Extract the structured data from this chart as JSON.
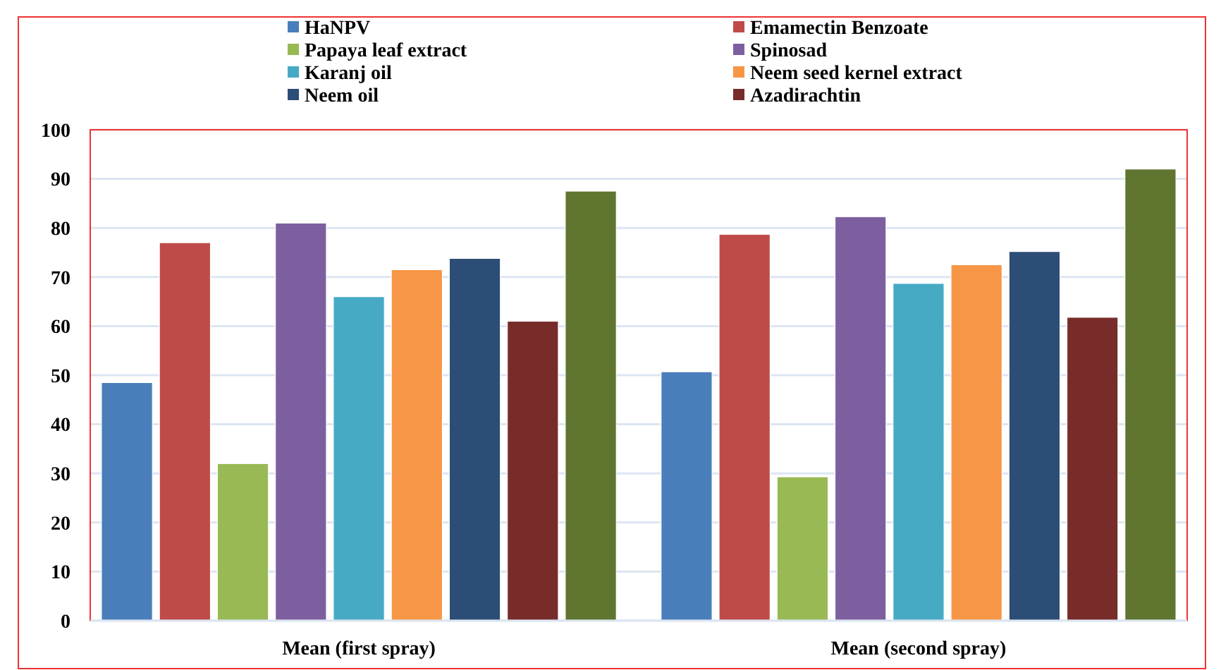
{
  "chart_data": {
    "type": "bar",
    "categories": [
      "Mean (first spray)",
      "Mean (second spray)"
    ],
    "series": [
      {
        "name": "HaNPV",
        "color": "#4a7ebb",
        "values": [
          48.5,
          50.7
        ]
      },
      {
        "name": "Emamectin Benzoate",
        "color": "#be4b48",
        "values": [
          77,
          78.7
        ]
      },
      {
        "name": "Papaya leaf extract",
        "color": "#98b954",
        "values": [
          32,
          29.3
        ]
      },
      {
        "name": "Spinosad",
        "color": "#7d5fa0",
        "values": [
          81,
          82.3
        ]
      },
      {
        "name": "Karanj oil",
        "color": "#46aac5",
        "values": [
          66,
          68.7
        ]
      },
      {
        "name": "Neem seed kernel extract",
        "color": "#f79646",
        "values": [
          71.5,
          72.5
        ]
      },
      {
        "name": "Neem oil",
        "color": "#2c4d75",
        "values": [
          73.8,
          75.2
        ]
      },
      {
        "name": "Azadirachtin",
        "color": "#772c2a",
        "values": [
          61,
          61.8
        ]
      },
      {
        "color": "#5f7530",
        "values": [
          87.5,
          92
        ]
      }
    ],
    "ylim": [
      0,
      100
    ],
    "yticks": [
      0,
      10,
      20,
      30,
      40,
      50,
      60,
      70,
      80,
      90,
      100
    ],
    "grid": "y",
    "legend": "top"
  }
}
